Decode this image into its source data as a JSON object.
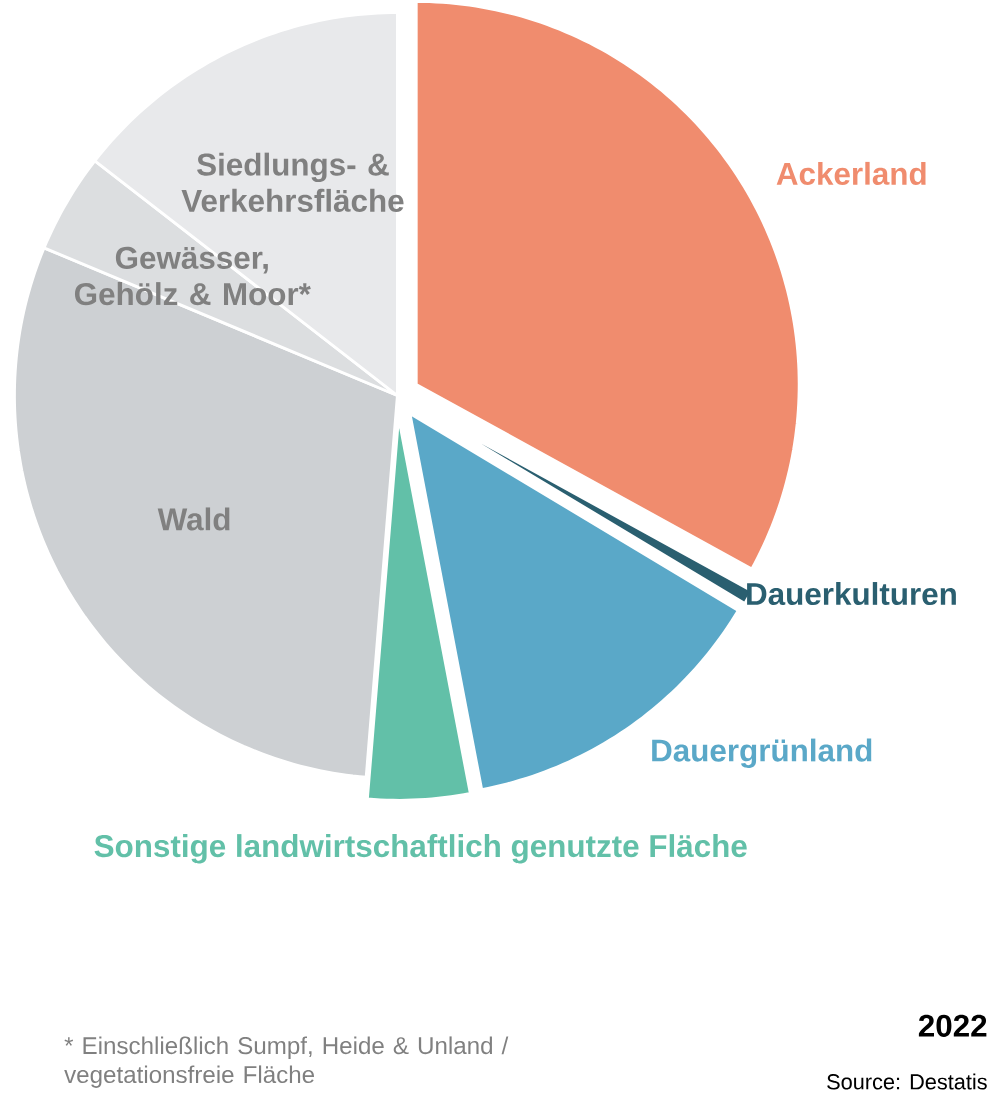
{
  "chart_data": {
    "type": "pie",
    "categories": [
      "Ackerland",
      "Dauerkulturen",
      "Dauergrünland",
      "Sonstige landwirtschaftlich genutzte Fläche",
      "Wald",
      "Gewässer, Gehölz & Moor*",
      "Siedlungs- & Verkehrsfläche"
    ],
    "values": [
      33,
      0.6,
      13.4,
      4.3,
      30,
      4.2,
      14.5
    ],
    "colors": [
      "#f08c6e",
      "#2a5f70",
      "#5aa8c8",
      "#62c0a8",
      "#cdd0d3",
      "#dcdee0",
      "#e8e9eb"
    ],
    "annotations": [
      "* Einschließlich Sumpf, Heide & Unland / vegetationsfreie Fläche",
      "2022",
      "Source: Destatis"
    ]
  }
}
